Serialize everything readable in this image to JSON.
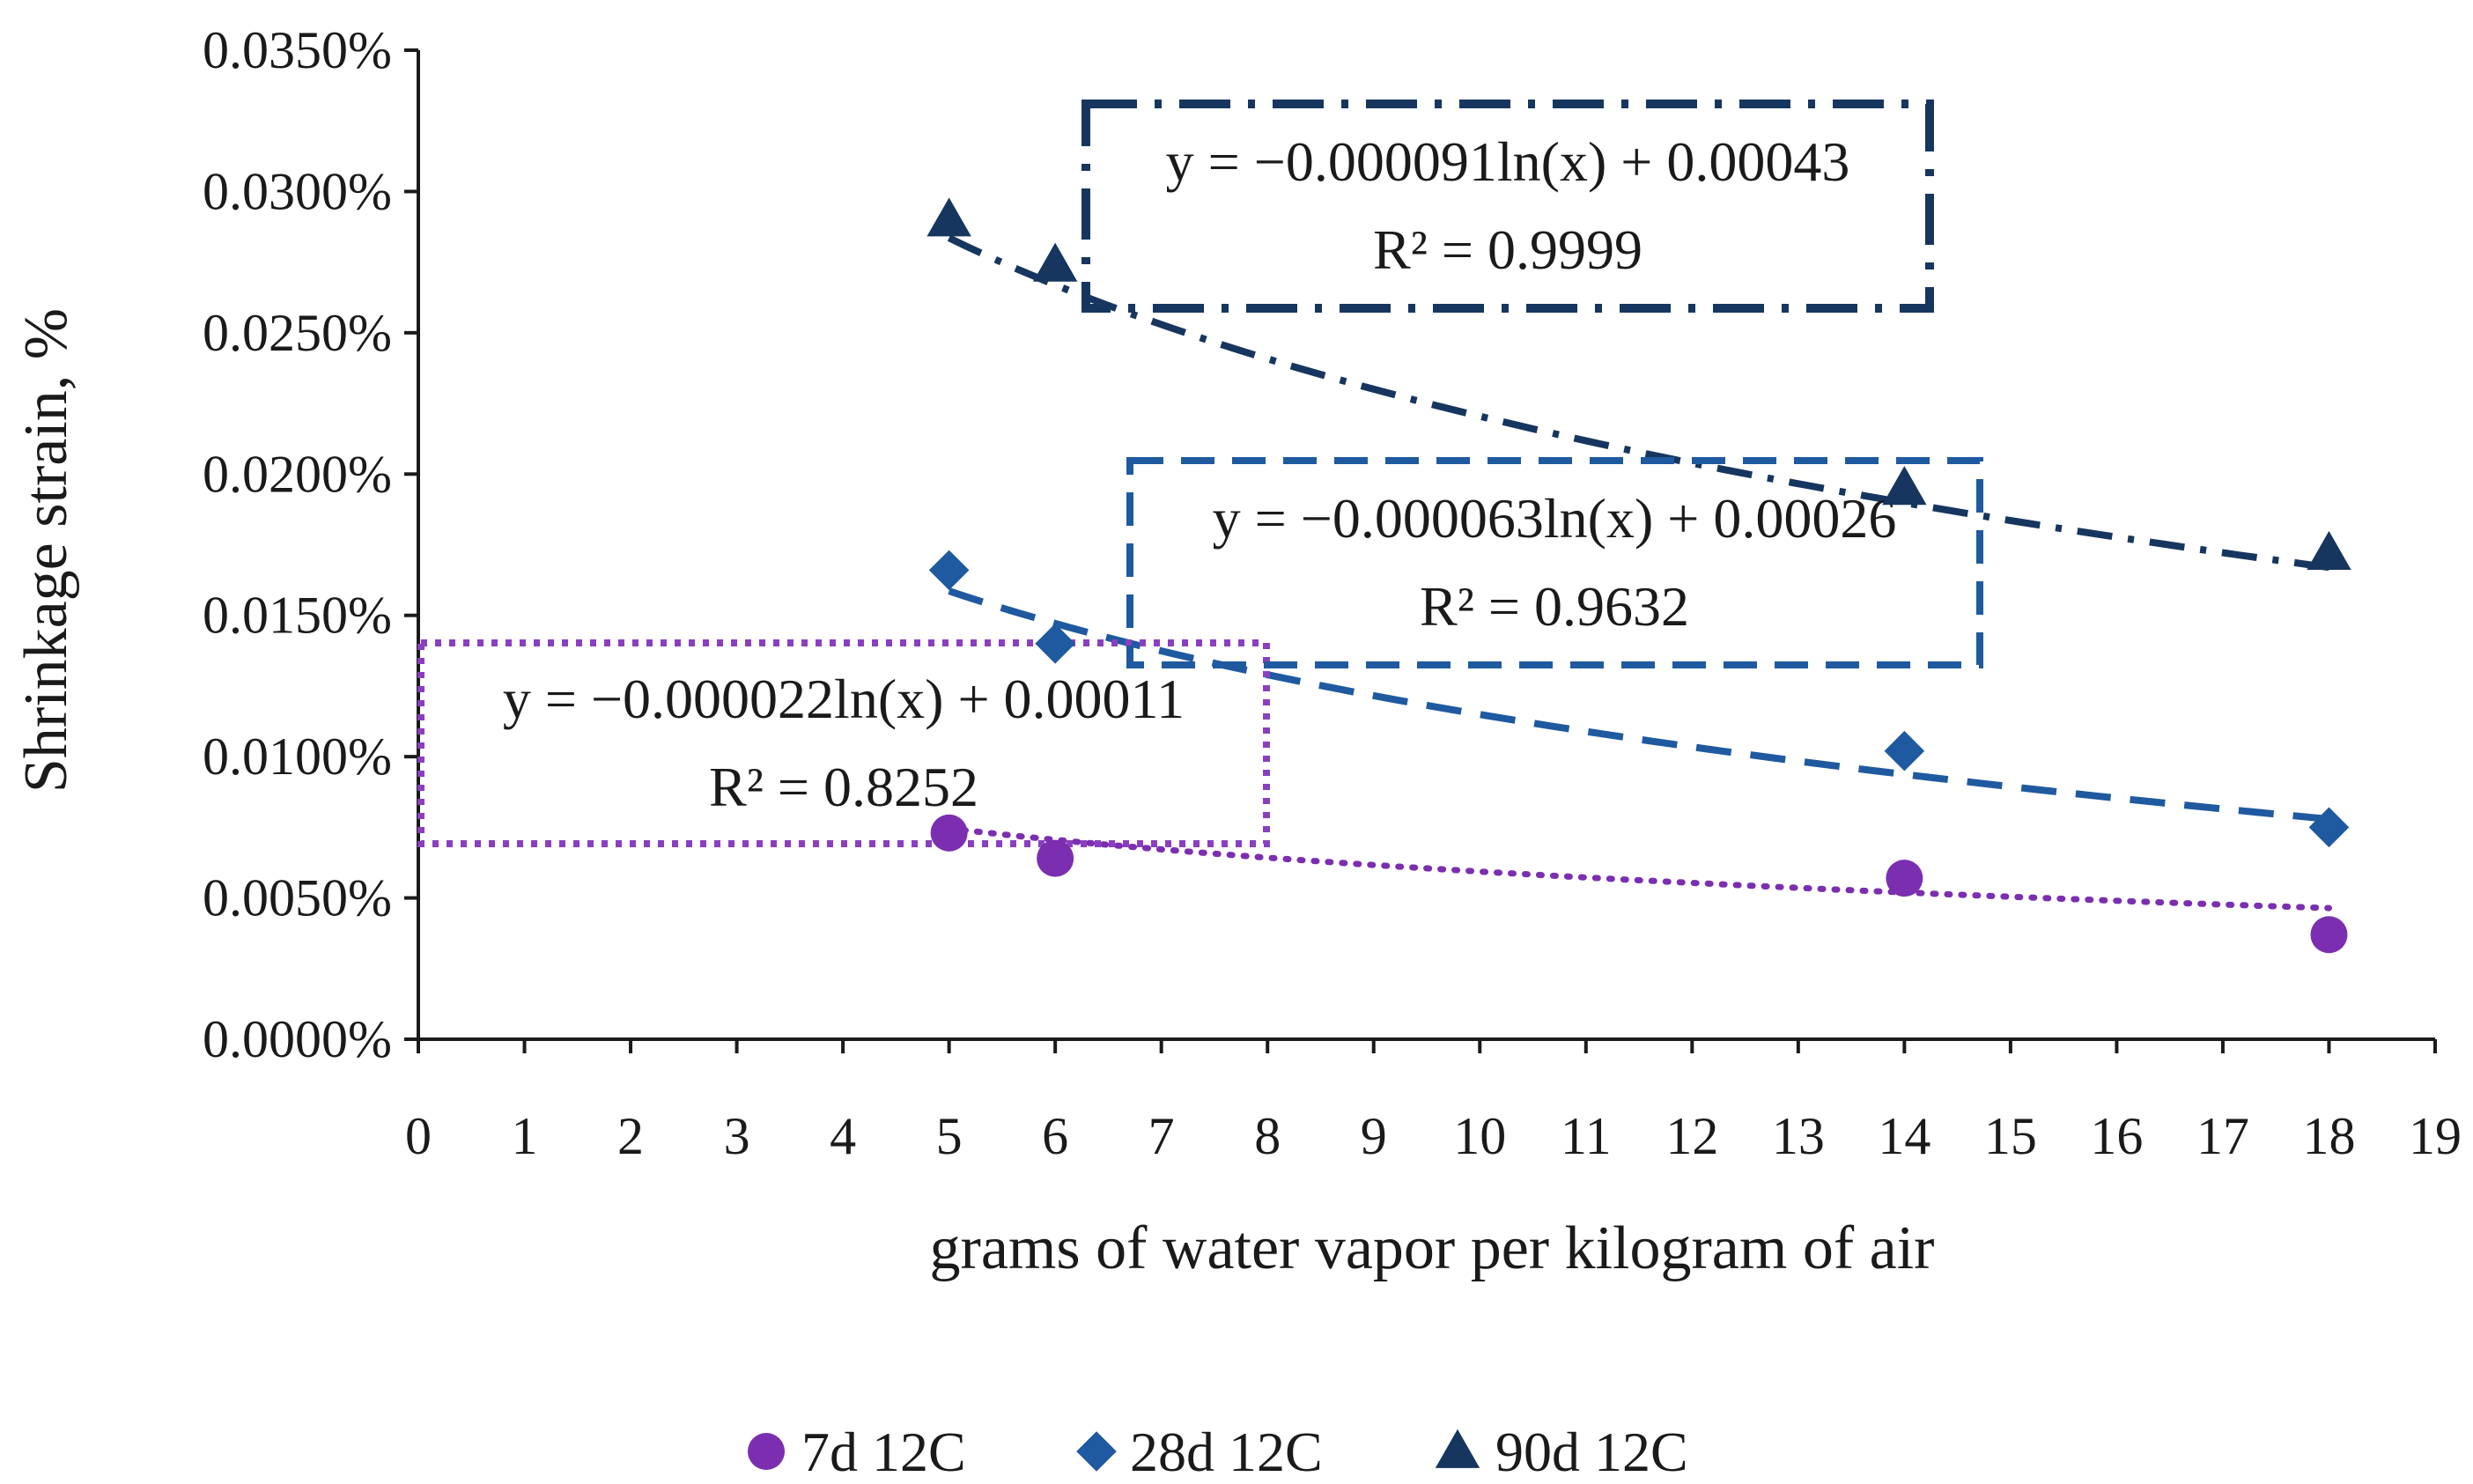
{
  "chart_data": {
    "type": "scatter",
    "title": "",
    "xlabel": "grams of water vapor per kilogram of air",
    "ylabel": "Shrinkage strain, %",
    "xlim": [
      0,
      19
    ],
    "ylim": [
      0,
      0.00035
    ],
    "x_ticks": [
      0,
      1,
      2,
      3,
      4,
      5,
      6,
      7,
      8,
      9,
      10,
      11,
      12,
      13,
      14,
      15,
      16,
      17,
      18,
      19
    ],
    "x_tick_labels": [
      "0",
      "1",
      "2",
      "3",
      "4",
      "5",
      "6",
      "7",
      "8",
      "9",
      "10",
      "11",
      "12",
      "13",
      "14",
      "15",
      "16",
      "17",
      "18",
      "19"
    ],
    "y_ticks": [
      0,
      5e-05,
      0.0001,
      0.00015,
      0.0002,
      0.00025,
      0.0003,
      0.00035
    ],
    "y_tick_labels": [
      "0.0000%",
      "0.0050%",
      "0.0100%",
      "0.0150%",
      "0.0200%",
      "0.0250%",
      "0.0300%",
      "0.0350%"
    ],
    "grid": false,
    "legend_position": "bottom",
    "series": [
      {
        "name": "7d 12C",
        "marker": "circle",
        "color": "#7B2FB0",
        "x": [
          5,
          6,
          14,
          18
        ],
        "y": [
          7.3e-05,
          6.4e-05,
          5.7e-05,
          3.7e-05
        ],
        "trendline": {
          "type": "log",
          "a": -2.2e-05,
          "b": 0.00011,
          "style": "dotted",
          "x_range": [
            5,
            18
          ]
        },
        "equation": "y = −0.000022ln(x) + 0.00011",
        "r2": "R² = 0.8252"
      },
      {
        "name": "28d 12C",
        "marker": "diamond",
        "color": "#1F5AA0",
        "x": [
          5,
          6,
          14,
          18
        ],
        "y": [
          0.000166,
          0.00014,
          0.000102,
          7.5e-05
        ],
        "trendline": {
          "type": "log",
          "a": -6.3e-05,
          "b": 0.00026,
          "style": "dashed",
          "x_range": [
            5,
            18
          ]
        },
        "equation": "y = −0.000063ln(x) + 0.00026",
        "r2": "R² = 0.9632"
      },
      {
        "name": "90d 12C",
        "marker": "triangle",
        "color": "#16365F",
        "x": [
          5,
          6,
          14,
          18
        ],
        "y": [
          0.00029,
          0.000274,
          0.000195,
          0.000172
        ],
        "trendline": {
          "type": "log",
          "a": -9.1e-05,
          "b": 0.00043,
          "style": "dashdot",
          "x_range": [
            5,
            18
          ]
        },
        "equation": "y = −0.000091ln(x) + 0.00043",
        "r2": "R² = 0.9999"
      }
    ]
  }
}
